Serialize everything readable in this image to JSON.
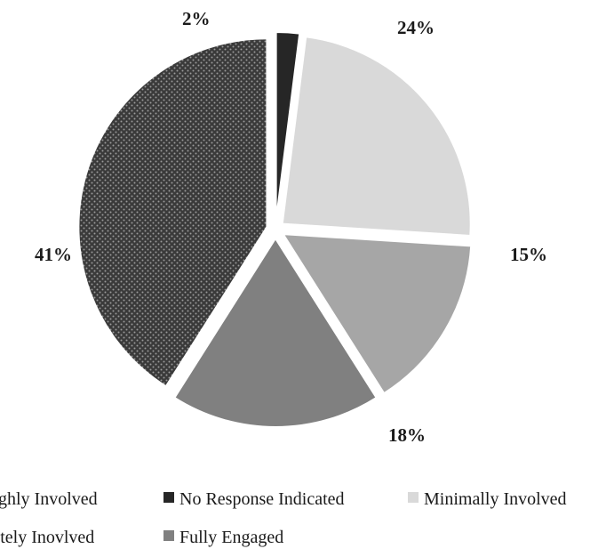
{
  "chart_data": {
    "type": "pie",
    "title": "",
    "slices": [
      {
        "label": "No Response Indicated",
        "value": 2,
        "display": "2%",
        "color": "#262626",
        "pattern": "solid"
      },
      {
        "label": "Minimally Involved",
        "value": 24,
        "display": "24%",
        "color": "#d9d9d9",
        "pattern": "solid"
      },
      {
        "label": "Moderately Involved",
        "value": 15,
        "display": "15%",
        "color": "#a6a6a6",
        "pattern": "solid"
      },
      {
        "label": "Fully Engaged",
        "value": 18,
        "display": "18%",
        "color": "#808080",
        "pattern": "solid"
      },
      {
        "label": "Highly Involved",
        "value": 41,
        "display": "41%",
        "color": "#3a3a3a",
        "pattern": "dotted"
      }
    ],
    "legend": {
      "placement": "bottom",
      "rows": [
        [
          {
            "label": "Highly Involved",
            "color": "#3a3a3a",
            "pattern": "dotted"
          },
          {
            "label": "No Response Indicated",
            "color": "#262626",
            "pattern": "solid"
          },
          {
            "label": "Minimally Involved",
            "color": "#d9d9d9",
            "pattern": "solid"
          }
        ],
        [
          {
            "label": "Moderately Inovlved",
            "color": "#a6a6a6",
            "pattern": "solid"
          },
          {
            "label": "Fully Engaged",
            "color": "#808080",
            "pattern": "solid"
          }
        ]
      ]
    }
  }
}
